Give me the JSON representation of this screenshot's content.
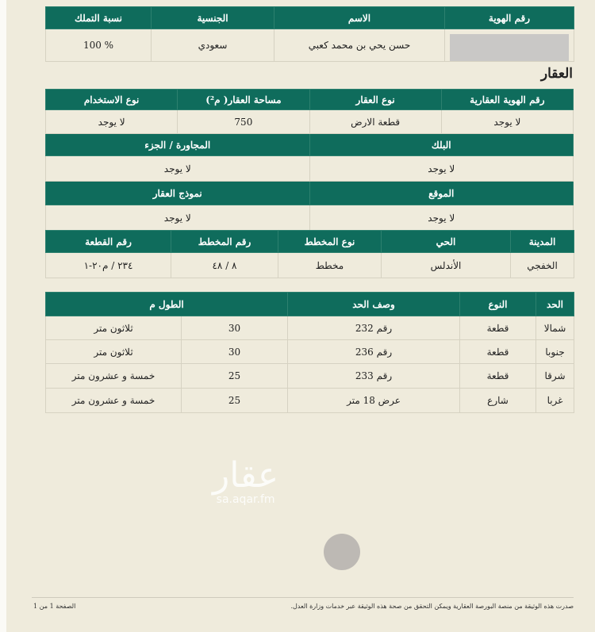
{
  "owners": {
    "headers": [
      "رقم الهوية",
      "الاسم",
      "الجنسية",
      "نسبة التملك"
    ],
    "row": {
      "id": "",
      "name": "حسن يحي بن محمد كعبي",
      "nationality": "سعودي",
      "share": "% 100"
    }
  },
  "property_title": "العقار",
  "property": {
    "headers1": [
      "رقم الهوية العقارية",
      "نوع العقار",
      "مساحة العقار( م²)",
      "نوع الاستخدام"
    ],
    "row1": [
      "لا يوجد",
      "قطعة الارض",
      "750",
      "لا يوجد"
    ],
    "headers2": [
      "البلك",
      "المجاورة / الجزء"
    ],
    "row2": [
      "لا يوجد",
      "لا يوجد"
    ],
    "headers3": [
      "الموقع",
      "نموذج العقار"
    ],
    "row3": [
      "لا يوجد",
      "لا يوجد"
    ],
    "headers4": [
      "المدينة",
      "الحي",
      "نوع المخطط",
      "رقم المخطط",
      "رقم القطعة"
    ],
    "row4": [
      "الخفجي",
      "الأندلس",
      "مخطط",
      "٨ / ٤٨",
      "٢٣٤ / م٢٠-١"
    ]
  },
  "boundaries": {
    "headers": [
      "الحد",
      "النوع",
      "وصف الحد",
      "الطول م"
    ],
    "rows": [
      [
        "شمالا",
        "قطعة",
        "رقم 232",
        "30",
        "ثلاثون متر"
      ],
      [
        "جنوبا",
        "قطعة",
        "رقم 236",
        "30",
        "ثلاثون متر"
      ],
      [
        "شرقا",
        "قطعة",
        "رقم 233",
        "25",
        "خمسة و عشرون متر"
      ],
      [
        "غربا",
        "شارع",
        "عرض 18 متر",
        "25",
        "خمسة و عشرون متر"
      ]
    ]
  },
  "watermark": {
    "logo": "عقار",
    "url": "sa.aqar.fm"
  },
  "footer": {
    "note": "صدرت هذه الوثيقة من منصة البورصة العقارية ويمكن التحقق من صحة هذه الوثيقة عبر خدمات وزارة العدل.",
    "page": "الصفحة 1 من 1"
  },
  "colors": {
    "header": "#0f6c5c",
    "background": "#efebdc"
  }
}
